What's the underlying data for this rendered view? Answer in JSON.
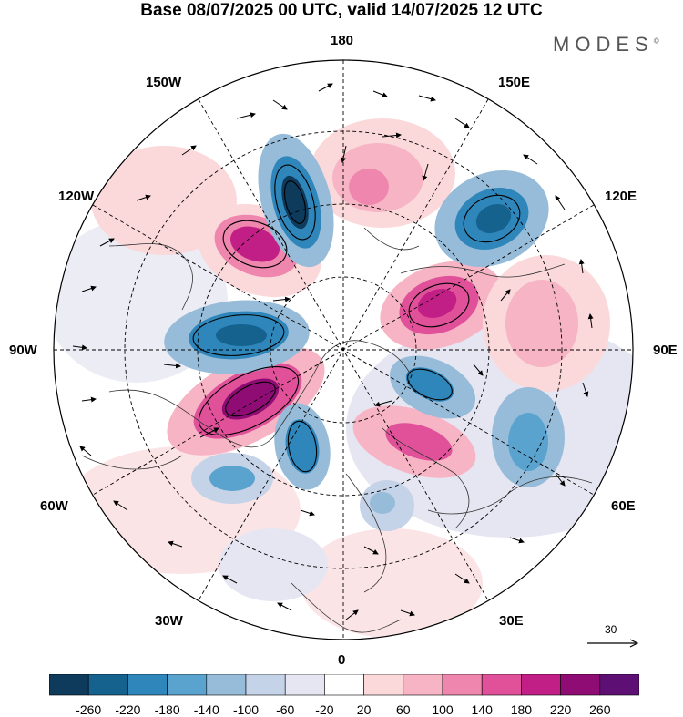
{
  "title": "Base 08/07/2025 00 UTC, valid 14/07/2025 12 UTC",
  "logo": "MODES",
  "logo_mark": "©",
  "lon_labels": {
    "n180": "180",
    "w150": "150W",
    "e150": "150E",
    "w120": "120W",
    "e120": "120E",
    "w90": "90W",
    "e90": "90E",
    "w60": "60W",
    "e60": "60E",
    "w30": "30W",
    "e30": "30E",
    "s0": "0"
  },
  "reference_vector": {
    "value": "30"
  },
  "colorbar": {
    "labels": [
      "-260",
      "-220",
      "-180",
      "-140",
      "-100",
      "-60",
      "-20",
      "20",
      "60",
      "100",
      "140",
      "180",
      "220",
      "260"
    ],
    "colors": [
      "#0e3a5c",
      "#16628f",
      "#2f86bb",
      "#5aa3cf",
      "#97bcd9",
      "#c5d3e8",
      "#e6e6f2",
      "#ffffff",
      "#fbd9db",
      "#f7b4c4",
      "#ef86ad",
      "#e0519a",
      "#c21f86",
      "#8e0c73",
      "#5d0f74"
    ]
  }
}
